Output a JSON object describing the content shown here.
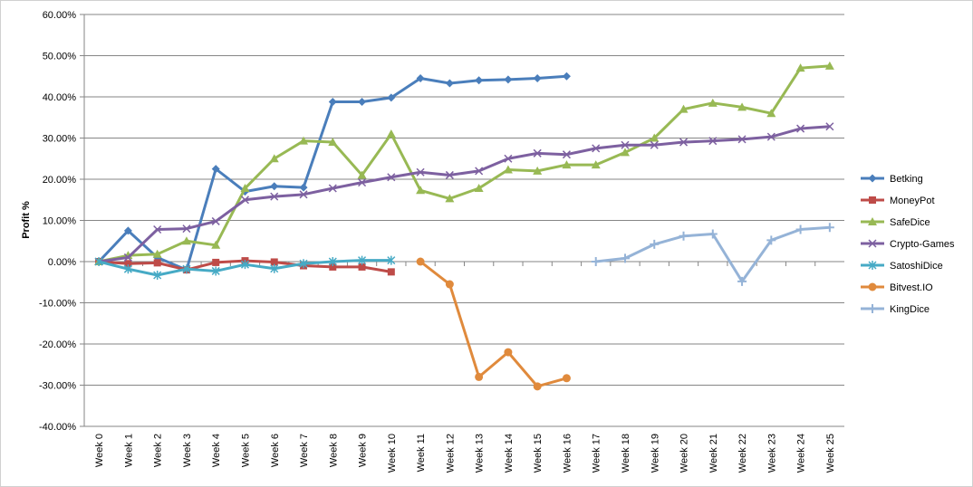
{
  "chart_data": {
    "type": "line",
    "y_label": "Profit %",
    "categories": [
      "Week 0",
      "Week 1",
      "Week 2",
      "Week 3",
      "Week 4",
      "Week 5",
      "Week 6",
      "Week 7",
      "Week 8",
      "Week 9",
      "Week 10",
      "Week 11",
      "Week 12",
      "Week 13",
      "Week 14",
      "Week 15",
      "Week 16",
      "Week 17",
      "Week 18",
      "Week 19",
      "Week 20",
      "Week 21",
      "Week 22",
      "Week 23",
      "Week 24",
      "Week 25"
    ],
    "ylim": [
      -40,
      60
    ],
    "yticks": [
      {
        "value": -40,
        "label": "-40.00%"
      },
      {
        "value": -30,
        "label": "-30.00%"
      },
      {
        "value": -20,
        "label": "-20.00%"
      },
      {
        "value": -10,
        "label": "-10.00%"
      },
      {
        "value": 0,
        "label": "0.00%"
      },
      {
        "value": 10,
        "label": "10.00%"
      },
      {
        "value": 20,
        "label": "20.00%"
      },
      {
        "value": 30,
        "label": "30.00%"
      },
      {
        "value": 40,
        "label": "40.00%"
      },
      {
        "value": 50,
        "label": "50.00%"
      },
      {
        "value": 60,
        "label": "60.00%"
      }
    ],
    "grid": true,
    "legend": "right",
    "series": [
      {
        "name": "Betking",
        "color": "#4a7ebb",
        "marker": "diamond",
        "values": [
          0,
          7.5,
          1,
          -2,
          22.5,
          17,
          18.3,
          18,
          38.8,
          38.8,
          39.8,
          44.5,
          43.3,
          44,
          44.2,
          44.5,
          45,
          null,
          null,
          null,
          null,
          null,
          null,
          null,
          null,
          null
        ]
      },
      {
        "name": "MoneyPot",
        "color": "#be4b48",
        "marker": "square",
        "values": [
          0,
          -0.5,
          -0.3,
          -2,
          -0.2,
          0.2,
          -0.1,
          -1,
          -1.3,
          -1.3,
          -2.5,
          null,
          null,
          null,
          null,
          null,
          null,
          null,
          null,
          null,
          null,
          null,
          null,
          null,
          null,
          null
        ]
      },
      {
        "name": "SafeDice",
        "color": "#98b954",
        "marker": "triangle",
        "values": [
          0,
          1.5,
          1.8,
          5,
          4,
          17.8,
          25,
          29.3,
          29,
          21,
          31,
          17.3,
          15.3,
          17.8,
          22.3,
          22,
          23.5,
          23.5,
          26.5,
          30,
          37,
          38.5,
          37.5,
          36,
          47,
          47.5
        ]
      },
      {
        "name": "Crypto-Games",
        "color": "#7d60a0",
        "marker": "x",
        "values": [
          0,
          1,
          7.8,
          8,
          9.8,
          15,
          15.8,
          16.3,
          17.8,
          19.2,
          20.5,
          21.7,
          21,
          22,
          25,
          26.3,
          26,
          27.5,
          28.3,
          28.3,
          29,
          29.3,
          29.7,
          30.3,
          32.3,
          32.8
        ]
      },
      {
        "name": "SatoshiDice",
        "color": "#46aac5",
        "marker": "star",
        "values": [
          0,
          -1.8,
          -3.3,
          -1.8,
          -2.3,
          -0.7,
          -1.7,
          -0.5,
          0,
          0.3,
          0.3,
          null,
          null,
          null,
          null,
          null,
          null,
          null,
          null,
          null,
          null,
          null,
          null,
          null,
          null,
          null
        ]
      },
      {
        "name": "Bitvest.IO",
        "color": "#e08a3c",
        "marker": "circle",
        "values": [
          null,
          null,
          null,
          null,
          null,
          null,
          null,
          null,
          null,
          null,
          null,
          0,
          -5.5,
          -28,
          -22,
          -30.3,
          -28.3,
          null,
          null,
          null,
          null,
          null,
          null,
          null,
          null,
          null
        ]
      },
      {
        "name": "KingDice",
        "color": "#95b3d7",
        "marker": "plus",
        "values": [
          null,
          null,
          null,
          null,
          null,
          null,
          null,
          null,
          null,
          null,
          null,
          null,
          null,
          null,
          null,
          null,
          null,
          0,
          0.8,
          4.2,
          6.2,
          6.7,
          -4.8,
          5.2,
          7.8,
          8.3
        ]
      }
    ]
  }
}
